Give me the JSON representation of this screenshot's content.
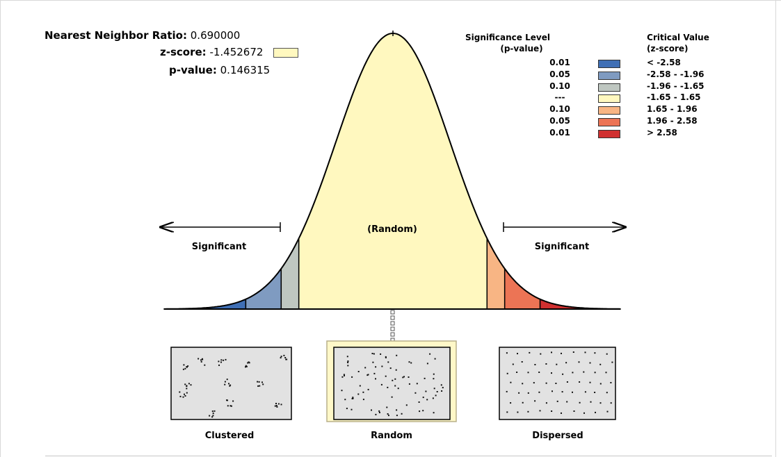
{
  "stats": {
    "nnr_label": "Nearest Neighbor Ratio:",
    "nnr_value": "0.690000",
    "z_label": "z-score:",
    "z_value": "-1.452672",
    "p_label": "p-value:",
    "p_value": "0.146315"
  },
  "legend": {
    "sig_header_1": "Significance Level",
    "sig_header_2": "(p-value)",
    "crit_header_1": "Critical Value",
    "crit_header_2": "(z-score)",
    "rows": [
      {
        "p": "0.01",
        "z": "< -2.58",
        "color": "#3f6fb5"
      },
      {
        "p": "0.05",
        "z": "-2.58 - -1.96",
        "color": "#7f9bc1"
      },
      {
        "p": "0.10",
        "z": "-1.96 - -1.65",
        "color": "#bfc7c1"
      },
      {
        "p": "---",
        "z": "-1.65 - 1.65",
        "color": "#fff8bf"
      },
      {
        "p": "0.10",
        "z": "1.65 - 1.96",
        "color": "#f8b584"
      },
      {
        "p": "0.05",
        "z": "1.96 - 2.58",
        "color": "#ec7455"
      },
      {
        "p": "0.01",
        "z": "> 2.58",
        "color": "#d03030"
      }
    ]
  },
  "curve": {
    "random_label": "(Random)",
    "left_label": "Significant",
    "right_label": "Significant"
  },
  "patterns": {
    "clustered": "Clustered",
    "random": "Random",
    "dispersed": "Dispersed"
  }
}
